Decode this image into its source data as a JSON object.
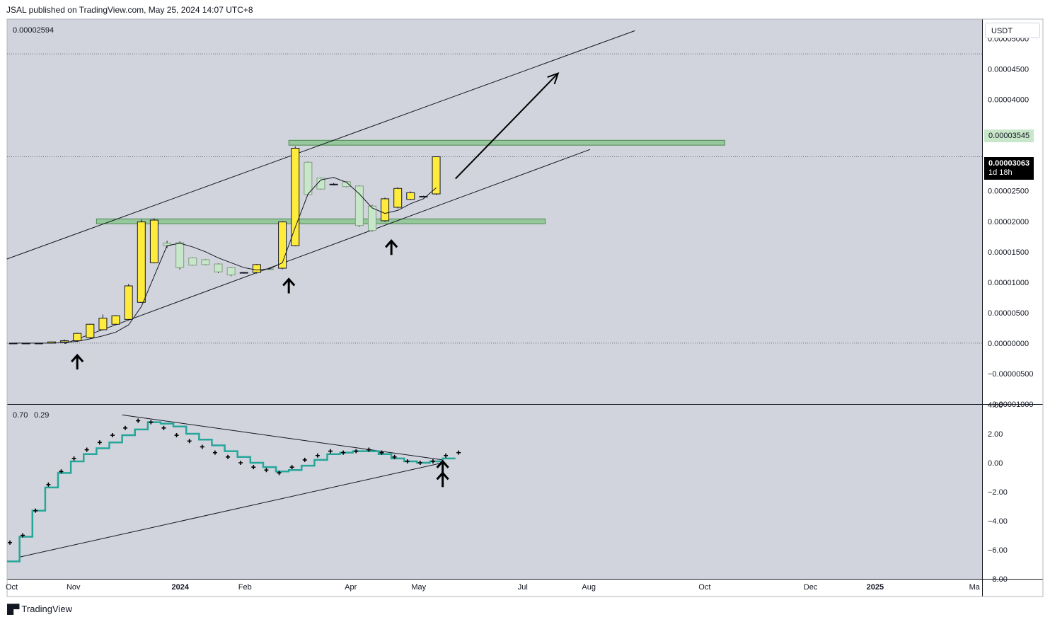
{
  "header": {
    "text": "JSAL published on TradingView.com, May 25, 2024 14:07 UTC+8"
  },
  "main_pane": {
    "legend_value": "0.00002594",
    "currency": "USDT",
    "last_price": "0.00003063",
    "countdown": "1d 18h",
    "zone_label": "0.00003545",
    "y_ticks": [
      {
        "v": 5e-05,
        "label": "0.00005000"
      },
      {
        "v": 4.5e-05,
        "label": "0.00004500"
      },
      {
        "v": 4e-05,
        "label": "0.00004000"
      },
      {
        "v": 2.5e-05,
        "label": "0.00002500"
      },
      {
        "v": 2e-05,
        "label": "0.00002000"
      },
      {
        "v": 1.5e-05,
        "label": "0.00001500"
      },
      {
        "v": 1e-05,
        "label": "0.00001000"
      },
      {
        "v": 5e-06,
        "label": "0.00000500"
      },
      {
        "v": 0,
        "label": "0.00000000"
      },
      {
        "v": -5e-06,
        "label": "−0.00000500"
      },
      {
        "v": -1e-05,
        "label": "−0.00001000"
      }
    ]
  },
  "sub_pane": {
    "legend_a": "0.70",
    "legend_b": "0.29",
    "legend_b_color": "#26a69a",
    "y_ticks": [
      {
        "v": 4,
        "label": "4.00"
      },
      {
        "v": 2,
        "label": "2.00"
      },
      {
        "v": 0,
        "label": "0.00"
      },
      {
        "v": -2,
        "label": "−2.00"
      },
      {
        "v": -4,
        "label": "−4.00"
      },
      {
        "v": -6,
        "label": "−6.00"
      },
      {
        "v": -8,
        "label": "−8.00"
      }
    ]
  },
  "time_axis": [
    {
      "label": "Oct",
      "bold": false
    },
    {
      "label": "Nov",
      "bold": false
    },
    {
      "label": "2024",
      "bold": true
    },
    {
      "label": "Feb",
      "bold": false
    },
    {
      "label": "Apr",
      "bold": false
    },
    {
      "label": "May",
      "bold": false
    },
    {
      "label": "Jul",
      "bold": false
    },
    {
      "label": "Aug",
      "bold": false
    },
    {
      "label": "Oct",
      "bold": false
    },
    {
      "label": "Dec",
      "bold": false
    },
    {
      "label": "2025",
      "bold": true
    },
    {
      "label": "Ma",
      "bold": false
    }
  ],
  "footer": {
    "brand": "TradingView"
  },
  "colors": {
    "background": "#d1d4dc",
    "up_candle": "#ffeb3b",
    "down_candle": "#c8e6c9",
    "zone": "#66bb6a",
    "indicator_line": "#26a69a"
  },
  "chart_data": [
    {
      "type": "candlestick",
      "interval": "weekly",
      "series": [
        {
          "o": 0,
          "h": 0,
          "l": 0,
          "c": 0
        },
        {
          "o": 0,
          "h": 0,
          "l": 0,
          "c": 0
        },
        {
          "o": 0,
          "h": 0,
          "l": 0,
          "c": 0
        },
        {
          "o": 0,
          "h": 2e-07,
          "l": 0,
          "c": 2e-07
        },
        {
          "o": 2e-07,
          "h": 6e-07,
          "l": 1e-07,
          "c": 4e-07
        },
        {
          "o": 4e-07,
          "h": 1.7e-06,
          "l": 2e-07,
          "c": 1.6e-06
        },
        {
          "o": 9e-07,
          "h": 3.2e-06,
          "l": 7e-07,
          "c": 3.1e-06
        },
        {
          "o": 2.2e-06,
          "h": 4.7e-06,
          "l": 2.1e-06,
          "c": 4.1e-06
        },
        {
          "o": 3.1e-06,
          "h": 4.6e-06,
          "l": 3e-06,
          "c": 4.5e-06
        },
        {
          "o": 3.9e-06,
          "h": 9.7e-06,
          "l": 3.8e-06,
          "c": 9.4e-06
        },
        {
          "o": 6.7e-06,
          "h": 2.03e-05,
          "l": 6.6e-06,
          "c": 1.99e-05
        },
        {
          "o": 1.32e-05,
          "h": 2.05e-05,
          "l": 1.31e-05,
          "c": 2.02e-05
        },
        {
          "o": 1.64e-05,
          "h": 1.68e-05,
          "l": 1.56e-05,
          "c": 1.6e-05
        },
        {
          "o": 1.65e-05,
          "h": 1.67e-05,
          "l": 1.21e-05,
          "c": 1.24e-05
        },
        {
          "o": 1.4e-05,
          "h": 1.41e-05,
          "l": 1.27e-05,
          "c": 1.28e-05
        },
        {
          "o": 1.37e-05,
          "h": 1.38e-05,
          "l": 1.28e-05,
          "c": 1.29e-05
        },
        {
          "o": 1.3e-05,
          "h": 1.31e-05,
          "l": 1.15e-05,
          "c": 1.17e-05
        },
        {
          "o": 1.24e-05,
          "h": 1.25e-05,
          "l": 1.1e-05,
          "c": 1.12e-05
        },
        {
          "o": 1.16e-05,
          "h": 1.17e-05,
          "l": 1.15e-05,
          "c": 1.16e-05
        },
        {
          "o": 1.16e-05,
          "h": 1.3e-05,
          "l": 1.14e-05,
          "c": 1.29e-05
        },
        {
          "o": 1.22e-05,
          "h": 1.23e-05,
          "l": 1.2e-05,
          "c": 1.21e-05
        },
        {
          "o": 1.23e-05,
          "h": 2e-05,
          "l": 1.21e-05,
          "c": 1.99e-05
        },
        {
          "o": 1.6e-05,
          "h": 3.23e-05,
          "l": 1.59e-05,
          "c": 3.2e-05
        },
        {
          "o": 2.97e-05,
          "h": 2.98e-05,
          "l": 2.43e-05,
          "c": 2.44e-05
        },
        {
          "o": 2.71e-05,
          "h": 2.72e-05,
          "l": 2.52e-05,
          "c": 2.53e-05
        },
        {
          "o": 2.61e-05,
          "h": 2.63e-05,
          "l": 2.59e-05,
          "c": 2.61e-05
        },
        {
          "o": 2.65e-05,
          "h": 2.66e-05,
          "l": 2.56e-05,
          "c": 2.57e-05
        },
        {
          "o": 2.58e-05,
          "h": 2.59e-05,
          "l": 1.91e-05,
          "c": 1.93e-05
        },
        {
          "o": 2.25e-05,
          "h": 2.27e-05,
          "l": 1.83e-05,
          "c": 1.85e-05
        },
        {
          "o": 2.01e-05,
          "h": 2.39e-05,
          "l": 1.99e-05,
          "c": 2.37e-05
        },
        {
          "o": 2.23e-05,
          "h": 2.56e-05,
          "l": 2.21e-05,
          "c": 2.54e-05
        },
        {
          "o": 2.36e-05,
          "h": 2.49e-05,
          "l": 2.35e-05,
          "c": 2.47e-05
        },
        {
          "o": 2.41e-05,
          "h": 2.42e-05,
          "l": 2.4e-05,
          "c": 2.41e-05
        },
        {
          "o": 2.45e-05,
          "h": 3.07e-05,
          "l": 2.43e-05,
          "c": 3.06e-05
        }
      ],
      "moving_average": [
        0,
        0,
        0,
        0,
        1e-07,
        3e-07,
        7e-07,
        1.2e-06,
        1.8e-06,
        3e-06,
        6e-06,
        1.1e-05,
        1.6e-05,
        1.64e-05,
        1.58e-05,
        1.5e-05,
        1.4e-05,
        1.32e-05,
        1.24e-05,
        1.2e-05,
        1.22e-05,
        1.32e-05,
        1.9e-05,
        2.45e-05,
        2.68e-05,
        2.72e-05,
        2.64e-05,
        2.45e-05,
        2.22e-05,
        2.13e-05,
        2.18e-05,
        2.29e-05,
        2.37e-05,
        2.55e-05
      ],
      "zones": [
        {
          "lo": 3.25e-05,
          "hi": 3.33e-05,
          "x0": 21.5,
          "x1": 55.5
        },
        {
          "lo": 1.96e-05,
          "hi": 2.04e-05,
          "x0": 6.5,
          "x1": 41.5
        }
      ],
      "trendlines": [
        {
          "x0": -0.5,
          "y0": 1.38e-05,
          "x1": 48.5,
          "y1": 5.13e-05
        },
        {
          "x0": 4,
          "y0": -1e-07,
          "x1": 45,
          "y1": 3.18e-05
        }
      ],
      "arrow": {
        "x0": 34.5,
        "y0": 2.7e-05,
        "x1": 42.5,
        "y1": 4.43e-05
      },
      "markers": [
        {
          "x": 5,
          "y": -2e-06
        },
        {
          "x": 21.5,
          "y": 1.05e-05
        },
        {
          "x": 29.5,
          "y": 1.68e-05
        }
      ],
      "ylim": [
        -1e-05,
        5.32e-05
      ],
      "hlines": [
        4.75e-05,
        3.06e-05,
        0
      ]
    },
    {
      "type": "line",
      "name": "indicator",
      "step_line": [
        -6.8,
        -5.1,
        -3.3,
        -1.7,
        -0.7,
        0.1,
        0.6,
        1.0,
        1.4,
        1.9,
        2.3,
        2.8,
        2.7,
        2.5,
        2.0,
        1.6,
        1.2,
        0.8,
        0.4,
        0.0,
        -0.3,
        -0.6,
        -0.5,
        -0.2,
        0.2,
        0.6,
        0.7,
        0.8,
        0.8,
        0.6,
        0.3,
        0.1,
        0.0,
        0.1,
        0.3
      ],
      "dots": [
        -5.5,
        -5.0,
        -3.3,
        -1.5,
        -0.6,
        0.3,
        0.9,
        1.4,
        1.9,
        2.4,
        2.9,
        2.8,
        2.4,
        1.9,
        1.5,
        1.1,
        0.7,
        0.4,
        0.0,
        -0.3,
        -0.5,
        -0.7,
        -0.3,
        0.2,
        0.5,
        0.8,
        0.7,
        0.8,
        0.9,
        0.7,
        0.4,
        0.1,
        0.0,
        0.1,
        0.5,
        0.7
      ],
      "trendlines": [
        {
          "x0": 8.5,
          "y0": 3.3,
          "x1": 33.5,
          "y1": 0.2
        },
        {
          "x0": 0.5,
          "y0": -6.5,
          "x1": 33.5,
          "y1": 0.0
        }
      ],
      "ylim": [
        -8,
        4
      ]
    }
  ]
}
